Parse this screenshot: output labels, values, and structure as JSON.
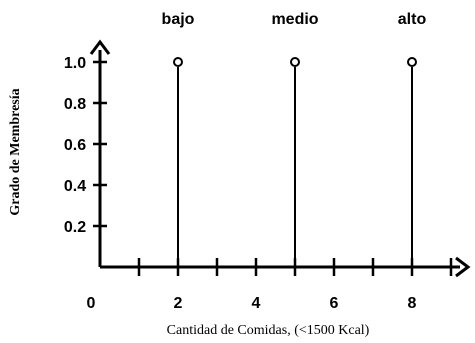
{
  "chart_data": {
    "type": "scatter",
    "xlabel": "Cantidad de Comidas, (<1500 Kcal)",
    "ylabel": "Grado de Membresía",
    "xlim": [
      0,
      9.5
    ],
    "ylim": [
      0,
      1.2
    ],
    "x_ticks": [
      1,
      2,
      3,
      4,
      5,
      6,
      7,
      8,
      9
    ],
    "x_tick_labels": [
      {
        "value": 0,
        "label": "0"
      },
      {
        "value": 2,
        "label": "2"
      },
      {
        "value": 4,
        "label": "4"
      },
      {
        "value": 6,
        "label": "6"
      },
      {
        "value": 8,
        "label": "8"
      }
    ],
    "y_ticks": [
      {
        "value": 0.2,
        "label": "0.2"
      },
      {
        "value": 0.4,
        "label": "0.4"
      },
      {
        "value": 0.6,
        "label": "0.6"
      },
      {
        "value": 0.8,
        "label": "0.8"
      },
      {
        "value": 1.0,
        "label": "1.0"
      }
    ],
    "points": [
      {
        "label": "bajo",
        "x": 2,
        "y": 1.0
      },
      {
        "label": "medio",
        "x": 5,
        "y": 1.0
      },
      {
        "label": "alto",
        "x": 8,
        "y": 1.0
      }
    ],
    "grid": false,
    "legend": "none",
    "colors": {
      "axis": "#000000",
      "line": "#000000"
    }
  }
}
